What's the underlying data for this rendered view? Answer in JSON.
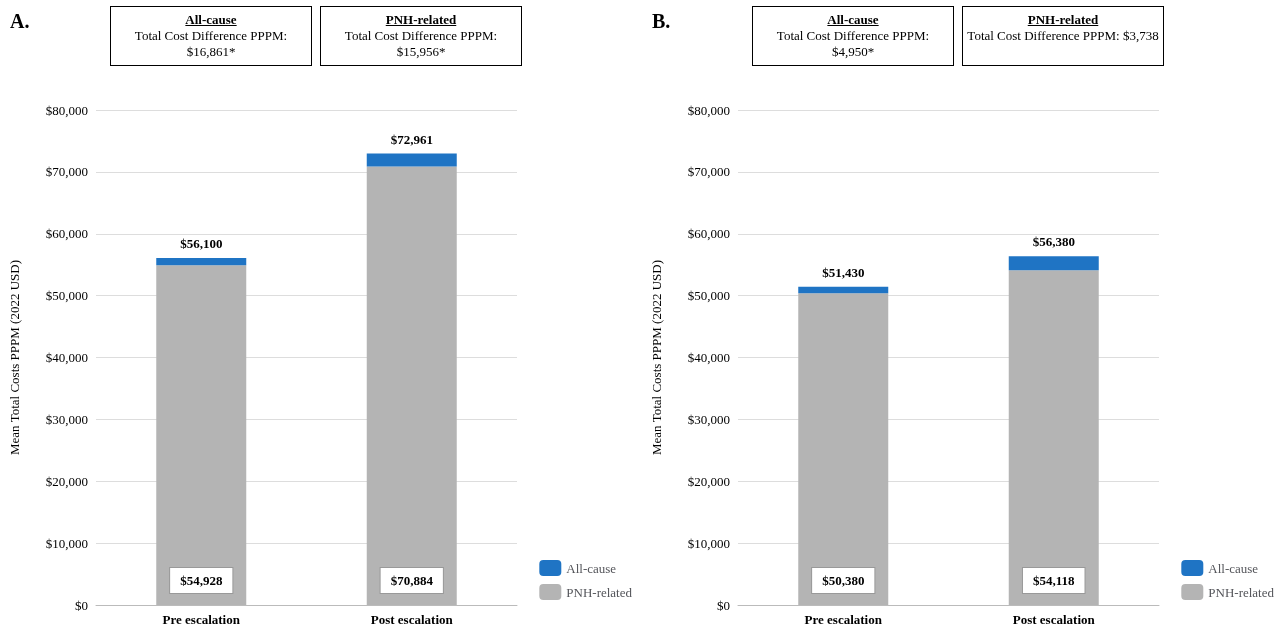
{
  "chart_data": [
    {
      "type": "bar",
      "title": "A.",
      "ylabel": "Mean Total Costs PPPM (2022 USD)",
      "categories": [
        "Pre escalation",
        "Post escalation"
      ],
      "stacked": true,
      "series": [
        {
          "name": "PNH-related",
          "color": "#b4b4b4",
          "values": [
            54928,
            70884
          ],
          "value_labels": [
            "$54,928",
            "$70,884"
          ]
        },
        {
          "name": "All-cause",
          "color": "#1f74c4",
          "values": [
            1172,
            2077
          ]
        }
      ],
      "totals": [
        "$56,100",
        "$72,961"
      ],
      "ylim": [
        0,
        80000
      ],
      "yticks": [
        {
          "value": 0,
          "label": "$0"
        },
        {
          "value": 10000,
          "label": "$10,000"
        },
        {
          "value": 20000,
          "label": "$20,000"
        },
        {
          "value": 30000,
          "label": "$30,000"
        },
        {
          "value": 40000,
          "label": "$40,000"
        },
        {
          "value": 50000,
          "label": "$50,000"
        },
        {
          "value": 60000,
          "label": "$60,000"
        },
        {
          "value": 70000,
          "label": "$70,000"
        },
        {
          "value": 80000,
          "label": "$80,000"
        }
      ],
      "grid": "y",
      "legend": "bottom right",
      "annotations": [
        "All-cause",
        "Total Cost Difference PPPM: $16,861*",
        "PNH-related",
        "Total Cost Difference PPPM: $15,956*"
      ]
    },
    {
      "type": "bar",
      "title": "B.",
      "ylabel": "Mean Total Costs PPPM (2022 USD)",
      "categories": [
        "Pre escalation",
        "Post escalation"
      ],
      "stacked": true,
      "series": [
        {
          "name": "PNH-related",
          "color": "#b4b4b4",
          "values": [
            50380,
            54118
          ],
          "value_labels": [
            "$50,380",
            "$54,118"
          ]
        },
        {
          "name": "All-cause",
          "color": "#1f74c4",
          "values": [
            1050,
            2262
          ]
        }
      ],
      "totals": [
        "$51,430",
        "$56,380"
      ],
      "ylim": [
        0,
        80000
      ],
      "yticks": [
        {
          "value": 0,
          "label": "$0"
        },
        {
          "value": 10000,
          "label": "$10,000"
        },
        {
          "value": 20000,
          "label": "$20,000"
        },
        {
          "value": 30000,
          "label": "$30,000"
        },
        {
          "value": 40000,
          "label": "$40,000"
        },
        {
          "value": 50000,
          "label": "$50,000"
        },
        {
          "value": 60000,
          "label": "$60,000"
        },
        {
          "value": 70000,
          "label": "$70,000"
        },
        {
          "value": 80000,
          "label": "$80,000"
        }
      ],
      "grid": "y",
      "legend": "bottom right",
      "annotations": [
        "All-cause",
        "Total Cost Difference PPPM: $4,950*",
        "PNH-related",
        "Total Cost Difference PPPM: $3,738"
      ]
    }
  ]
}
